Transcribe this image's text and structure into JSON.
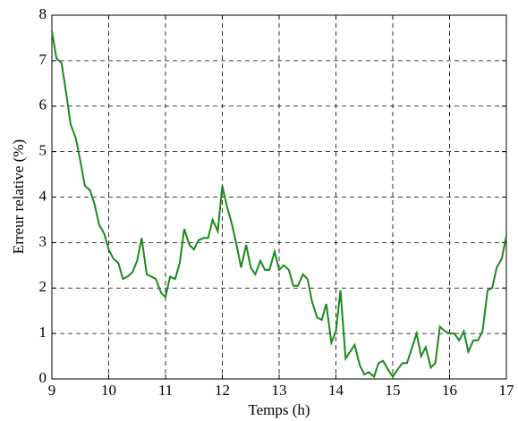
{
  "chart_data": {
    "type": "line",
    "xlabel": "Temps (h)",
    "ylabel": "Erreur relative (%)",
    "x": [
      9,
      9.08,
      9.17,
      9.25,
      9.33,
      9.42,
      9.5,
      9.58,
      9.67,
      9.75,
      9.83,
      9.92,
      10,
      10.08,
      10.17,
      10.25,
      10.33,
      10.42,
      10.5,
      10.58,
      10.67,
      10.75,
      10.83,
      10.92,
      11,
      11.08,
      11.17,
      11.25,
      11.33,
      11.42,
      11.5,
      11.58,
      11.67,
      11.75,
      11.83,
      11.92,
      12,
      12.08,
      12.17,
      12.25,
      12.33,
      12.42,
      12.5,
      12.58,
      12.67,
      12.75,
      12.83,
      12.92,
      13,
      13.08,
      13.17,
      13.25,
      13.33,
      13.42,
      13.5,
      13.58,
      13.67,
      13.75,
      13.83,
      13.92,
      14,
      14.08,
      14.17,
      14.25,
      14.33,
      14.42,
      14.5,
      14.58,
      14.67,
      14.75,
      14.83,
      14.92,
      15,
      15.08,
      15.17,
      15.25,
      15.33,
      15.42,
      15.5,
      15.58,
      15.67,
      15.75,
      15.83,
      15.92,
      16,
      16.08,
      16.17,
      16.25,
      16.33,
      16.42,
      16.5,
      16.58,
      16.67,
      16.75,
      16.83,
      16.92,
      17
    ],
    "values": [
      7.65,
      7.05,
      6.95,
      6.3,
      5.6,
      5.3,
      4.8,
      4.25,
      4.15,
      3.85,
      3.4,
      3.2,
      2.85,
      2.65,
      2.55,
      2.2,
      2.25,
      2.35,
      2.6,
      3.1,
      2.3,
      2.25,
      2.2,
      1.9,
      1.8,
      2.25,
      2.2,
      2.55,
      3.3,
      2.95,
      2.85,
      3.05,
      3.1,
      3.1,
      3.5,
      3.25,
      4.25,
      3.8,
      3.4,
      2.95,
      2.45,
      2.95,
      2.45,
      2.3,
      2.6,
      2.4,
      2.4,
      2.8,
      2.4,
      2.5,
      2.4,
      2.05,
      2.05,
      2.3,
      2.2,
      1.7,
      1.35,
      1.3,
      1.65,
      0.8,
      1.05,
      1.95,
      0.45,
      0.6,
      0.75,
      0.3,
      0.1,
      0.15,
      0.05,
      0.35,
      0.4,
      0.2,
      0.05,
      0.2,
      0.35,
      0.35,
      0.65,
      1.0,
      0.5,
      0.7,
      0.25,
      0.35,
      1.15,
      1.05,
      1.0,
      1.0,
      0.85,
      1.05,
      0.6,
      0.85,
      0.85,
      1.05,
      1.95,
      2.0,
      2.45,
      2.65,
      3.15
    ],
    "color": "#1a8a1a",
    "xlim": [
      9,
      17
    ],
    "xticks": [
      9,
      10,
      11,
      12,
      13,
      14,
      15,
      16,
      17
    ],
    "ylim": [
      0,
      8
    ],
    "yticks": [
      0,
      1,
      2,
      3,
      4,
      5,
      6,
      7,
      8
    ],
    "grid": true
  }
}
